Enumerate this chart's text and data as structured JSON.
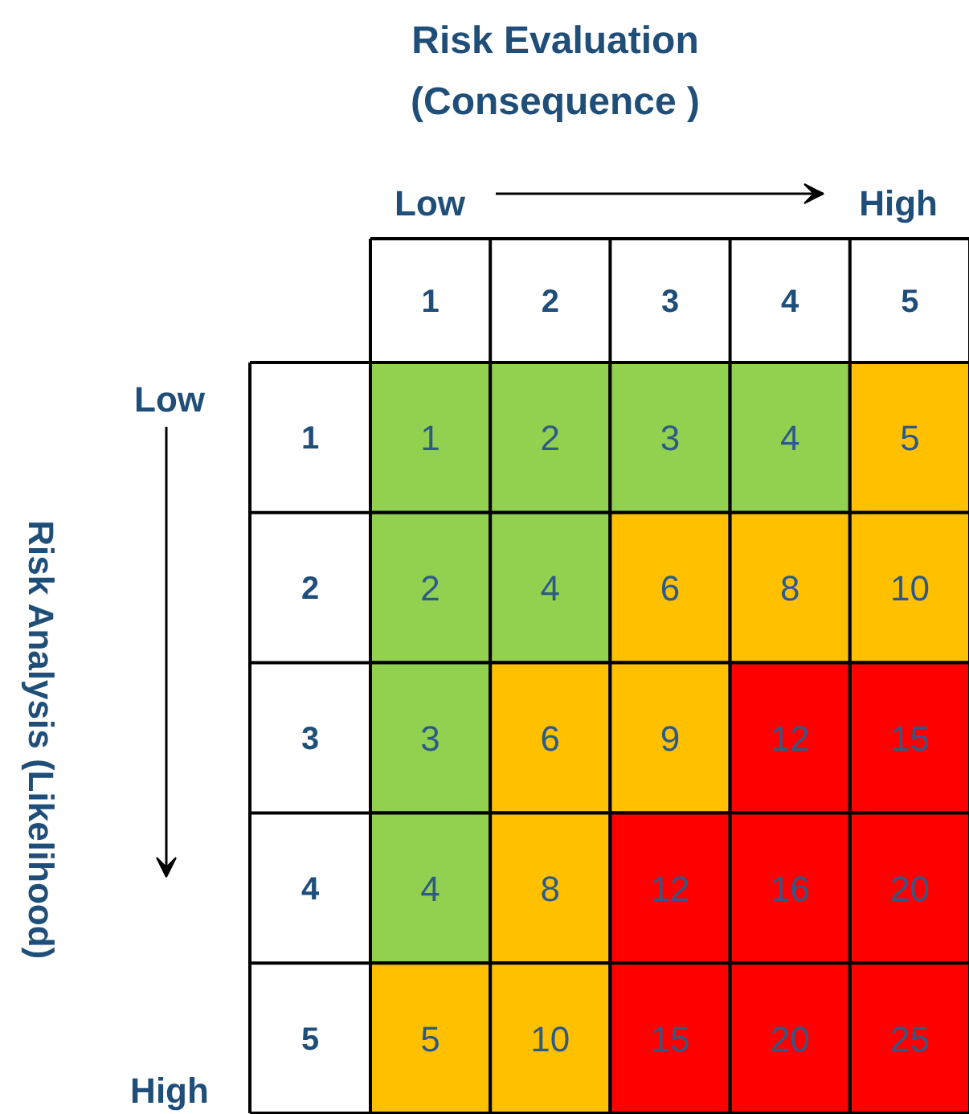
{
  "chart_data": {
    "type": "heatmap",
    "title": "Risk Evaluation (Consequence )",
    "categories": [
      "1",
      "2",
      "3",
      "4",
      "5"
    ],
    "y_categories": [
      "1",
      "2",
      "3",
      "4",
      "5"
    ],
    "cells": [
      [
        1,
        2,
        3,
        4,
        5
      ],
      [
        2,
        4,
        6,
        8,
        10
      ],
      [
        3,
        6,
        9,
        12,
        15
      ],
      [
        4,
        8,
        12,
        16,
        20
      ],
      [
        5,
        10,
        15,
        20,
        25
      ]
    ],
    "colors": [
      [
        "#92d050",
        "#92d050",
        "#92d050",
        "#92d050",
        "#ffc000"
      ],
      [
        "#92d050",
        "#92d050",
        "#ffc000",
        "#ffc000",
        "#ffc000"
      ],
      [
        "#92d050",
        "#ffc000",
        "#ffc000",
        "#ff0000",
        "#ff0000"
      ],
      [
        "#92d050",
        "#ffc000",
        "#ff0000",
        "#ff0000",
        "#ff0000"
      ],
      [
        "#ffc000",
        "#ffc000",
        "#ff0000",
        "#ff0000",
        "#ff0000"
      ]
    ],
    "data_labels": true,
    "annotations": [
      "Low",
      "High",
      "Low",
      "High",
      "Risk Analysis (Likelihood)"
    ]
  }
}
